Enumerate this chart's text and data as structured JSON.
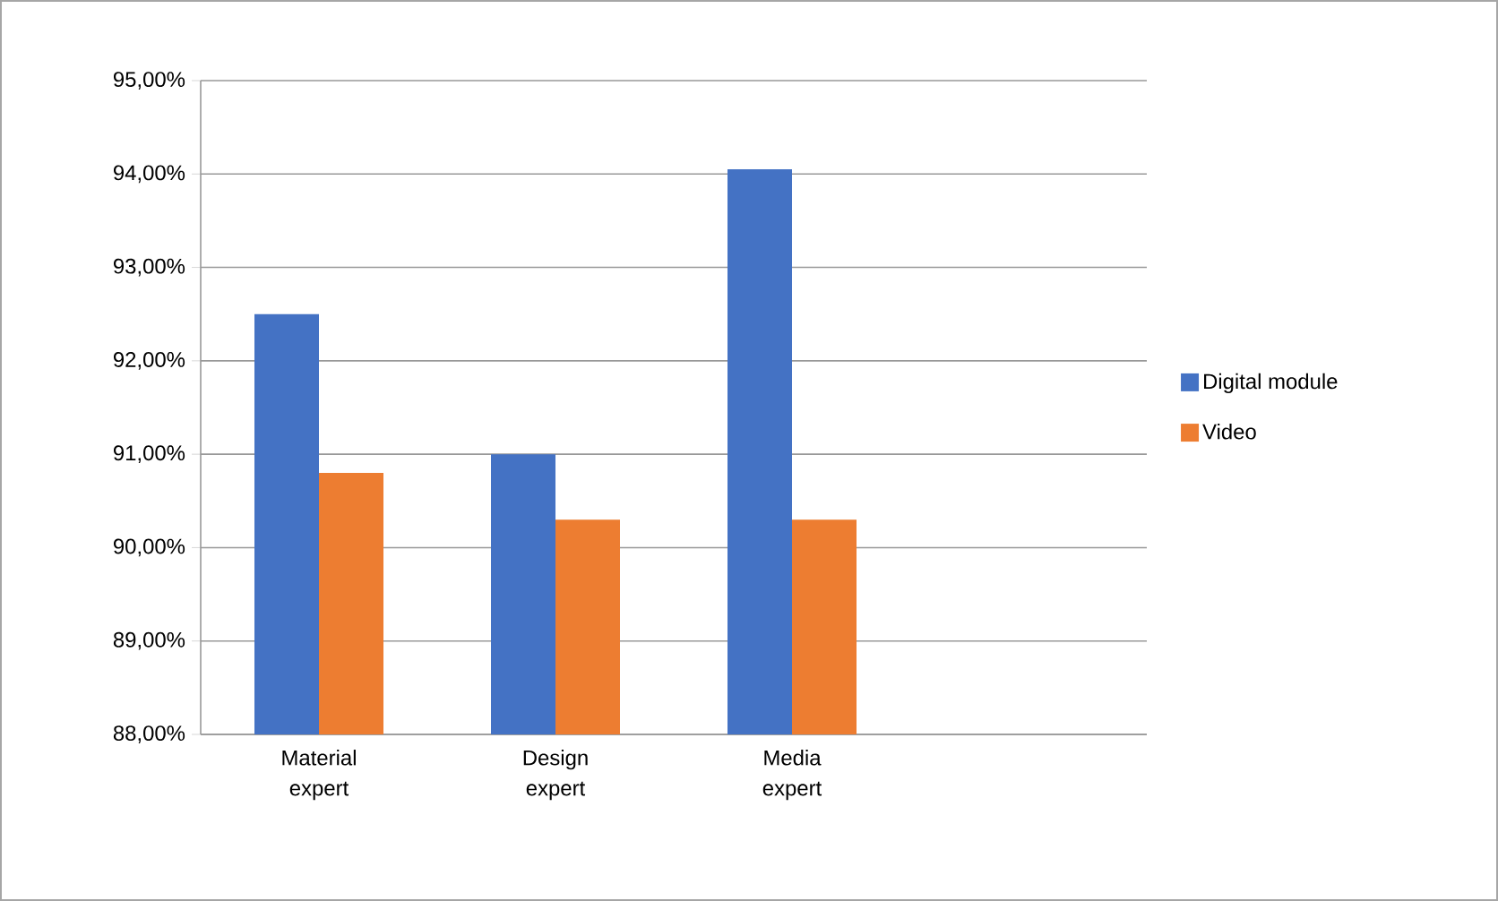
{
  "chart_data": {
    "type": "bar",
    "categories": [
      "Material expert",
      "Design expert",
      "Media expert",
      null
    ],
    "series": [
      {
        "name": "Digital module",
        "color": "#4472c4",
        "values": [
          92.5,
          91.0,
          94.05,
          null
        ]
      },
      {
        "name": "Video",
        "color": "#ed7d31",
        "values": [
          90.8,
          90.3,
          90.3,
          null
        ]
      }
    ],
    "ylim": [
      88,
      95
    ],
    "yticks": [
      {
        "value": 88,
        "label": "88,00%"
      },
      {
        "value": 89,
        "label": "89,00%"
      },
      {
        "value": 90,
        "label": "90,00%"
      },
      {
        "value": 91,
        "label": "91,00%"
      },
      {
        "value": 92,
        "label": "92,00%"
      },
      {
        "value": 93,
        "label": "93,00%"
      },
      {
        "value": 94,
        "label": "94,00%"
      },
      {
        "value": 95,
        "label": "95,00%"
      }
    ],
    "grid": "y",
    "legend": "right"
  }
}
